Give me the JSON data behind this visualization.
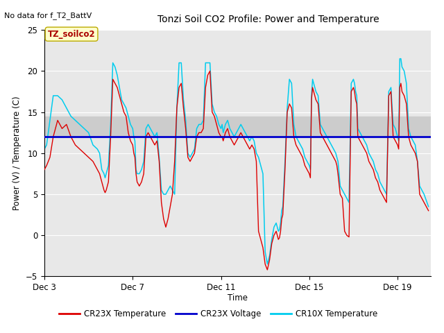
{
  "title": "Tonzi Soil CO2 Profile: Power and Temperature",
  "no_data_text": "No data for f_T2_BattV",
  "ylabel": "Power (V) / Temperature (C)",
  "xlabel": "Time",
  "ylim": [
    -5,
    25
  ],
  "xlim_days": [
    3,
    20.5
  ],
  "voltage_line": 12.0,
  "voltage_color": "#0000cc",
  "cr23x_color": "#dd0000",
  "cr10x_color": "#00ccee",
  "bg_color": "#e8e8e8",
  "band_color": "#cccccc",
  "band_ymin": 12,
  "band_ymax": 14.5,
  "tz_label": "TZ_soilco2",
  "legend_entries": [
    "CR23X Temperature",
    "CR23X Voltage",
    "CR10X Temperature"
  ],
  "legend_colors": [
    "#dd0000",
    "#0000cc",
    "#00ccee"
  ],
  "x_tick_labels": [
    "Dec 3",
    "Dec 7",
    "Dec 11",
    "Dec 15",
    "Dec 19"
  ],
  "x_tick_positions": [
    3,
    7,
    11,
    15,
    19
  ],
  "cr23x_x": [
    3.0,
    3.1,
    3.25,
    3.4,
    3.6,
    3.8,
    4.0,
    4.2,
    4.4,
    4.6,
    4.8,
    5.0,
    5.2,
    5.4,
    5.5,
    5.6,
    5.7,
    5.75,
    5.8,
    5.9,
    6.0,
    6.1,
    6.2,
    6.3,
    6.5,
    6.6,
    6.7,
    6.8,
    6.9,
    7.0,
    7.05,
    7.1,
    7.15,
    7.2,
    7.3,
    7.4,
    7.5,
    7.6,
    7.7,
    7.8,
    7.9,
    8.0,
    8.1,
    8.2,
    8.3,
    8.4,
    8.5,
    8.6,
    8.7,
    8.8,
    8.9,
    9.0,
    9.1,
    9.2,
    9.3,
    9.4,
    9.5,
    9.6,
    9.7,
    9.8,
    9.9,
    10.0,
    10.1,
    10.2,
    10.3,
    10.4,
    10.5,
    10.6,
    10.7,
    10.8,
    10.9,
    11.0,
    11.05,
    11.1,
    11.15,
    11.2,
    11.3,
    11.4,
    11.5,
    11.6,
    11.7,
    11.8,
    11.9,
    12.0,
    12.1,
    12.2,
    12.3,
    12.4,
    12.5,
    12.6,
    12.7,
    12.8,
    12.9,
    13.0,
    13.1,
    13.2,
    13.3,
    13.4,
    13.5,
    13.6,
    13.65,
    13.7,
    13.75,
    13.8,
    13.9,
    14.0,
    14.1,
    14.2,
    14.3,
    14.4,
    14.5,
    14.6,
    14.7,
    14.8,
    14.9,
    15.0,
    15.05,
    15.1,
    15.15,
    15.2,
    15.3,
    15.4,
    15.5,
    15.6,
    15.7,
    15.8,
    15.9,
    16.0,
    16.1,
    16.2,
    16.25,
    16.3,
    16.4,
    16.5,
    16.6,
    16.7,
    16.8,
    16.9,
    17.0,
    17.05,
    17.1,
    17.15,
    17.2,
    17.3,
    17.4,
    17.5,
    17.6,
    17.7,
    17.8,
    17.9,
    18.0,
    18.1,
    18.2,
    18.3,
    18.4,
    18.5,
    18.6,
    18.7,
    18.8,
    18.9,
    19.0,
    19.05,
    19.1,
    19.15,
    19.2,
    19.3,
    19.4,
    19.5,
    19.6,
    19.7,
    19.8,
    19.9,
    20.0,
    20.2,
    20.4
  ],
  "cr23x_y": [
    8.0,
    8.5,
    9.5,
    12.0,
    14.0,
    13.0,
    13.5,
    12.0,
    11.0,
    10.5,
    10.0,
    9.5,
    9.0,
    8.0,
    7.5,
    6.5,
    5.5,
    5.2,
    5.5,
    6.5,
    12.0,
    19.0,
    18.5,
    18.0,
    16.0,
    15.0,
    14.5,
    12.5,
    11.5,
    11.0,
    10.0,
    9.5,
    7.5,
    6.5,
    6.0,
    6.5,
    7.5,
    12.0,
    12.5,
    12.0,
    11.5,
    11.0,
    11.5,
    9.0,
    4.0,
    2.0,
    1.0,
    2.0,
    3.5,
    5.0,
    9.0,
    15.5,
    18.0,
    18.5,
    15.5,
    13.0,
    9.5,
    9.0,
    9.5,
    10.0,
    12.0,
    12.5,
    12.5,
    13.0,
    18.0,
    19.5,
    20.0,
    15.0,
    14.5,
    13.5,
    12.5,
    12.0,
    12.0,
    11.5,
    12.0,
    12.5,
    13.0,
    12.0,
    11.5,
    11.0,
    11.5,
    12.0,
    12.5,
    12.0,
    11.5,
    11.0,
    10.5,
    11.0,
    10.5,
    9.0,
    0.5,
    -0.5,
    -1.5,
    -3.5,
    -4.2,
    -3.0,
    -1.0,
    0.0,
    0.5,
    -0.5,
    -0.3,
    0.5,
    2.0,
    2.5,
    8.0,
    15.0,
    16.0,
    15.5,
    12.0,
    11.0,
    10.5,
    10.0,
    9.5,
    8.5,
    8.0,
    7.5,
    7.0,
    16.5,
    18.0,
    17.5,
    16.5,
    16.0,
    12.5,
    12.0,
    11.5,
    11.0,
    10.5,
    10.0,
    9.5,
    9.0,
    8.5,
    7.5,
    5.0,
    4.5,
    0.5,
    0.0,
    -0.2,
    17.5,
    18.0,
    17.5,
    16.5,
    16.0,
    12.0,
    11.5,
    11.0,
    10.5,
    10.0,
    9.0,
    8.5,
    8.0,
    7.0,
    6.5,
    5.5,
    5.0,
    4.5,
    4.0,
    17.0,
    17.5,
    12.0,
    11.5,
    11.0,
    10.5,
    18.0,
    18.5,
    17.5,
    17.0,
    16.0,
    12.0,
    11.0,
    10.5,
    10.0,
    9.0,
    5.0,
    4.0,
    3.0
  ],
  "cr10x_x": [
    3.0,
    3.1,
    3.25,
    3.4,
    3.6,
    3.8,
    4.0,
    4.2,
    4.4,
    4.6,
    4.8,
    5.0,
    5.2,
    5.4,
    5.5,
    5.6,
    5.7,
    5.75,
    5.8,
    5.9,
    6.0,
    6.1,
    6.2,
    6.3,
    6.5,
    6.6,
    6.7,
    6.8,
    6.9,
    7.0,
    7.05,
    7.1,
    7.15,
    7.2,
    7.3,
    7.4,
    7.5,
    7.6,
    7.7,
    7.8,
    7.9,
    8.0,
    8.1,
    8.2,
    8.3,
    8.4,
    8.5,
    8.6,
    8.7,
    8.8,
    8.9,
    9.0,
    9.1,
    9.2,
    9.3,
    9.4,
    9.5,
    9.6,
    9.7,
    9.8,
    9.9,
    10.0,
    10.1,
    10.2,
    10.3,
    10.4,
    10.5,
    10.6,
    10.7,
    10.8,
    10.9,
    11.0,
    11.05,
    11.1,
    11.15,
    11.2,
    11.3,
    11.4,
    11.5,
    11.6,
    11.7,
    11.8,
    11.9,
    12.0,
    12.1,
    12.2,
    12.3,
    12.4,
    12.5,
    12.6,
    12.7,
    12.8,
    12.9,
    13.0,
    13.1,
    13.2,
    13.3,
    13.4,
    13.5,
    13.6,
    13.65,
    13.7,
    13.75,
    13.8,
    13.9,
    14.0,
    14.1,
    14.2,
    14.3,
    14.4,
    14.5,
    14.6,
    14.7,
    14.8,
    14.9,
    15.0,
    15.05,
    15.1,
    15.15,
    15.2,
    15.3,
    15.4,
    15.5,
    15.6,
    15.7,
    15.8,
    15.9,
    16.0,
    16.1,
    16.2,
    16.25,
    16.3,
    16.4,
    16.5,
    16.6,
    16.7,
    16.8,
    16.9,
    17.0,
    17.05,
    17.1,
    17.15,
    17.2,
    17.3,
    17.4,
    17.5,
    17.6,
    17.7,
    17.8,
    17.9,
    18.0,
    18.1,
    18.2,
    18.3,
    18.4,
    18.5,
    18.6,
    18.7,
    18.8,
    18.9,
    19.0,
    19.05,
    19.1,
    19.15,
    19.2,
    19.3,
    19.4,
    19.5,
    19.6,
    19.7,
    19.8,
    19.9,
    20.0,
    20.2,
    20.4
  ],
  "cr10x_y": [
    10.5,
    11.0,
    14.0,
    17.0,
    17.0,
    16.5,
    15.5,
    14.5,
    14.0,
    13.5,
    13.0,
    12.5,
    11.0,
    10.5,
    10.0,
    8.0,
    7.5,
    7.0,
    7.5,
    8.5,
    13.5,
    21.0,
    20.5,
    19.5,
    16.5,
    16.0,
    15.5,
    14.5,
    13.5,
    13.0,
    12.0,
    11.5,
    8.0,
    7.5,
    7.5,
    8.0,
    9.0,
    13.0,
    13.5,
    13.0,
    12.5,
    12.0,
    12.5,
    9.5,
    5.5,
    5.0,
    5.0,
    5.5,
    6.0,
    5.5,
    5.0,
    15.5,
    21.0,
    21.0,
    16.5,
    14.0,
    10.0,
    9.5,
    10.0,
    10.5,
    13.0,
    13.5,
    13.5,
    14.0,
    21.0,
    21.0,
    21.0,
    16.0,
    15.0,
    14.5,
    13.5,
    13.0,
    13.5,
    12.5,
    13.0,
    13.5,
    14.0,
    13.0,
    12.5,
    12.0,
    12.5,
    13.0,
    13.5,
    13.0,
    12.5,
    12.0,
    11.5,
    12.0,
    11.5,
    10.0,
    9.5,
    8.5,
    7.5,
    -2.0,
    -3.5,
    -2.5,
    -0.5,
    1.0,
    1.5,
    0.5,
    0.7,
    1.5,
    3.0,
    3.5,
    9.0,
    15.5,
    19.0,
    18.5,
    13.5,
    12.0,
    11.5,
    11.0,
    10.5,
    9.5,
    9.0,
    8.5,
    8.0,
    17.0,
    19.0,
    18.5,
    17.5,
    17.0,
    13.5,
    13.0,
    12.5,
    12.0,
    11.5,
    11.0,
    10.5,
    10.0,
    9.5,
    9.0,
    6.0,
    5.5,
    5.0,
    4.5,
    4.0,
    18.5,
    19.0,
    18.5,
    17.5,
    17.0,
    13.0,
    12.5,
    12.0,
    11.5,
    11.0,
    10.0,
    9.5,
    9.0,
    8.0,
    7.5,
    6.5,
    6.0,
    5.5,
    5.0,
    17.5,
    18.0,
    13.5,
    13.0,
    12.0,
    11.5,
    21.5,
    21.5,
    20.5,
    20.0,
    18.5,
    13.0,
    12.0,
    11.5,
    11.0,
    9.0,
    6.0,
    5.0,
    3.5
  ]
}
